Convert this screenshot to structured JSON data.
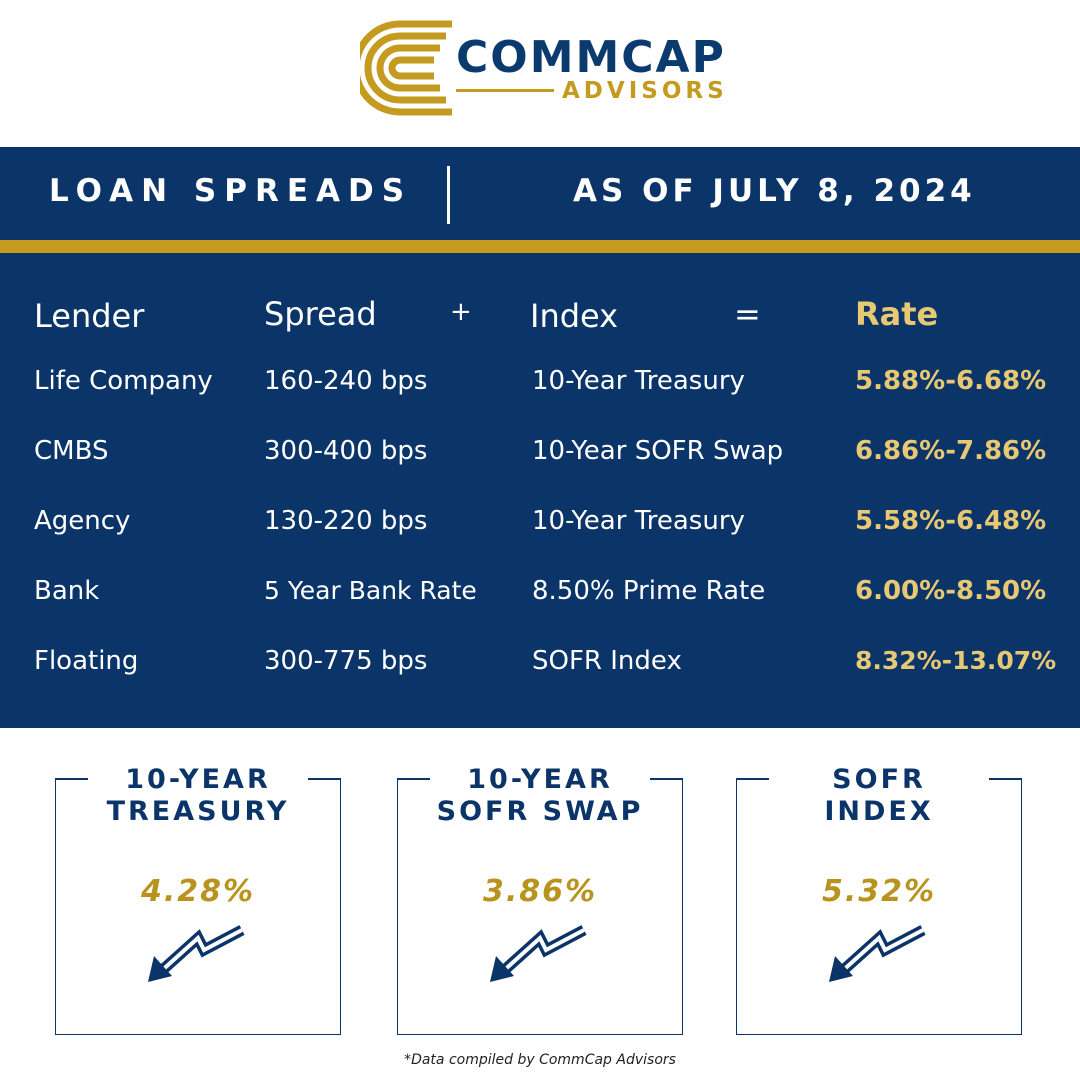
{
  "brand": {
    "name_main": "COMMCAP",
    "name_sub": "ADVISORS",
    "logo_icon": "commcap-c-icon"
  },
  "header": {
    "left": "LOAN SPREADS",
    "right": "AS OF JULY 8, 2024"
  },
  "table": {
    "columns": {
      "lender": "Lender",
      "spread": "Spread",
      "plus": "+",
      "index": "Index",
      "equals": "=",
      "rate": "Rate"
    },
    "rows": [
      {
        "lender": "Life Company",
        "spread": "160-240 bps",
        "index": "10-Year Treasury",
        "rate": "5.88%-6.68%"
      },
      {
        "lender": "CMBS",
        "spread": "300-400 bps",
        "index": "10-Year SOFR Swap",
        "rate": "6.86%-7.86%"
      },
      {
        "lender": "Agency",
        "spread": "130-220 bps",
        "index": "10-Year Treasury",
        "rate": "5.58%-6.48%"
      },
      {
        "lender": "Bank",
        "spread": "5 Year Bank Rate",
        "index": "8.50% Prime Rate",
        "rate": "6.00%-8.50%"
      },
      {
        "lender": "Floating",
        "spread": "300-775 bps",
        "index": "SOFR Index",
        "rate": "8.32%-13.07%"
      }
    ]
  },
  "indices": [
    {
      "title_line1": "10-YEAR",
      "title_line2": "TREASURY",
      "value": "4.28%",
      "trend_icon": "trend-down-arrow-icon"
    },
    {
      "title_line1": "10-YEAR",
      "title_line2": "SOFR SWAP",
      "value": "3.86%",
      "trend_icon": "trend-down-arrow-icon"
    },
    {
      "title_line1": "SOFR",
      "title_line2": "INDEX",
      "value": "5.32%",
      "trend_icon": "trend-down-arrow-icon"
    }
  ],
  "footnote": "*Data compiled by CommCap Advisors",
  "colors": {
    "navy": "#0b3469",
    "gold": "#c49a1f",
    "rate_gold": "#e8c872"
  }
}
